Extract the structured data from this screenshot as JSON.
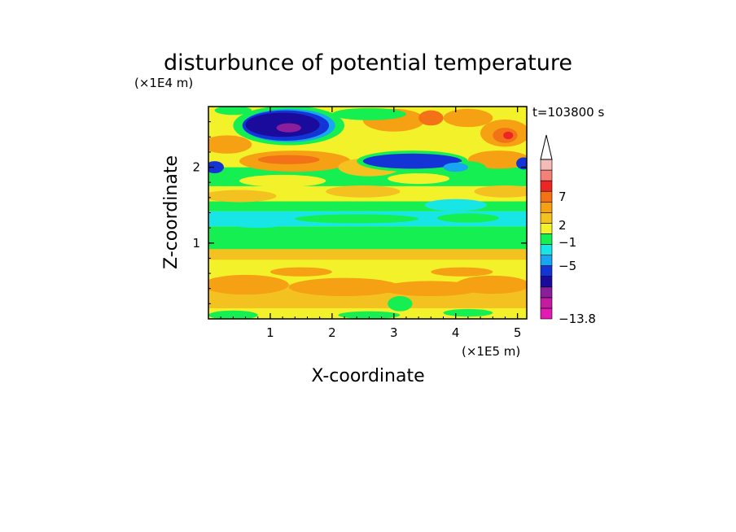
{
  "chart_data": {
    "type": "heatmap",
    "title": "disturbunce of potential temperature",
    "time_label": "t=103800 s",
    "xlabel": "X-coordinate",
    "ylabel": "Z-coordinate",
    "x_unit": "(×1E5 m)",
    "y_unit": "(×1E4 m)",
    "xlim": [
      0,
      5.15
    ],
    "ylim": [
      0,
      2.8
    ],
    "x_ticks": [
      1,
      2,
      3,
      4,
      5
    ],
    "x_tick_labels": [
      "1",
      "2",
      "3",
      "4",
      "5"
    ],
    "y_ticks": [
      1,
      2
    ],
    "y_tick_labels": [
      "1",
      "2"
    ],
    "colorbar": {
      "levels_bottom_to_top": [
        "#e21bb4",
        "#c41ca0",
        "#8b1e9a",
        "#1a0b9c",
        "#1434d6",
        "#17a6ef",
        "#18e6e6",
        "#16ef52",
        "#f3f12a",
        "#f4c220",
        "#f6a013",
        "#f37217",
        "#ec2525",
        "#f3817a",
        "#f4bcb8"
      ],
      "extend_top": true,
      "labels": [
        "-13.8",
        "-5",
        "-1",
        "2",
        "7"
      ]
    },
    "field_description_bands": [
      {
        "z": [
          0.0,
          0.15
        ],
        "dominant": "yellow"
      },
      {
        "z": [
          0.15,
          0.8
        ],
        "dominant": "orange/yellow"
      },
      {
        "z": [
          0.8,
          1.2
        ],
        "dominant": "green"
      },
      {
        "z": [
          1.2,
          1.4
        ],
        "dominant": "cyan"
      },
      {
        "z": [
          1.4,
          1.9
        ],
        "dominant": "yellow/green"
      },
      {
        "z": [
          1.9,
          2.8
        ],
        "dominant": "mixed with dark blue minima"
      }
    ]
  }
}
